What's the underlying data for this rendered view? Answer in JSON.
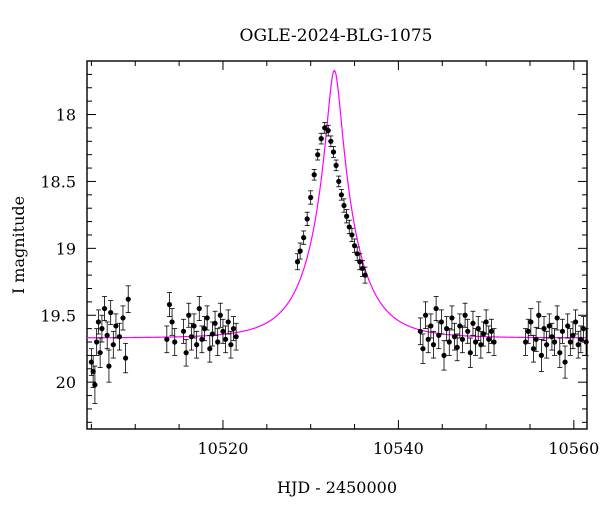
{
  "chart_data": {
    "type": "scatter",
    "title": "OGLE-2024-BLG-1075",
    "xlabel": "HJD - 2450000",
    "ylabel": "I magnitude",
    "xlim": [
      10504.5,
      10561.5
    ],
    "ylim": [
      20.35,
      17.6
    ],
    "y_inverted": true,
    "x_ticks": [
      10520,
      10540,
      10560
    ],
    "x_tick_labels": [
      "10520",
      "10540",
      "10560"
    ],
    "y_ticks": [
      18,
      18.5,
      19,
      19.5,
      20
    ],
    "y_tick_labels": [
      "18",
      "18.5",
      "19",
      "19.5",
      "20"
    ],
    "grid": false,
    "colors": {
      "data": "#000000",
      "model": "#ff00ff"
    },
    "model": {
      "name": "",
      "baseline_mag": 19.67,
      "t0": 10532.7,
      "u0": 0.16,
      "tE": 4.8
    },
    "series": [
      {
        "name": "",
        "x": [
          10505.0,
          10505.2,
          10505.4,
          10505.6,
          10505.8,
          10506.0,
          10506.2,
          10506.5,
          10506.8,
          10507.0,
          10507.2,
          10507.5,
          10507.8,
          10508.2,
          10508.6,
          10508.9,
          10509.2,
          10513.6,
          10513.9,
          10514.2,
          10514.5,
          10515.5,
          10515.8,
          10516.1,
          10516.4,
          10516.7,
          10517.0,
          10517.3,
          10517.6,
          10517.9,
          10518.2,
          10518.5,
          10518.8,
          10519.1,
          10519.4,
          10519.7,
          10520.0,
          10520.3,
          10520.6,
          10520.9,
          10521.2,
          10521.5,
          10528.5,
          10528.8,
          10529.2,
          10529.6,
          10530.0,
          10530.4,
          10530.8,
          10531.2,
          10531.6,
          10532.0,
          10532.3,
          10532.6,
          10532.9,
          10533.2,
          10533.5,
          10533.8,
          10534.1,
          10534.4,
          10534.7,
          10535.0,
          10535.3,
          10535.6,
          10535.9,
          10536.2,
          10542.5,
          10542.8,
          10543.1,
          10543.4,
          10543.7,
          10544.0,
          10544.3,
          10544.6,
          10544.9,
          10545.2,
          10545.5,
          10545.8,
          10546.1,
          10546.4,
          10546.7,
          10547.0,
          10547.3,
          10547.6,
          10547.9,
          10548.2,
          10548.5,
          10548.8,
          10549.1,
          10549.4,
          10549.7,
          10550.0,
          10550.3,
          10550.6,
          10550.9,
          10554.5,
          10554.8,
          10555.1,
          10555.4,
          10555.7,
          10556.0,
          10556.3,
          10556.6,
          10556.9,
          10557.2,
          10557.5,
          10557.8,
          10558.1,
          10558.4,
          10558.7,
          10559.0,
          10559.3,
          10559.6,
          10559.9,
          10560.2,
          10560.5,
          10560.8,
          10561.1,
          10561.4
        ],
        "y": [
          19.85,
          19.92,
          20.02,
          19.7,
          19.55,
          19.78,
          19.6,
          19.45,
          19.65,
          19.88,
          19.48,
          19.72,
          19.58,
          19.66,
          19.52,
          19.82,
          19.38,
          19.68,
          19.42,
          19.55,
          19.7,
          19.62,
          19.78,
          19.5,
          19.66,
          19.58,
          19.72,
          19.45,
          19.68,
          19.6,
          19.52,
          19.75,
          19.64,
          19.56,
          19.7,
          19.5,
          19.62,
          19.68,
          19.55,
          19.72,
          19.6,
          19.66,
          19.1,
          19.02,
          18.92,
          18.78,
          18.62,
          18.45,
          18.3,
          18.18,
          18.1,
          18.12,
          18.2,
          18.28,
          18.38,
          18.5,
          18.6,
          18.68,
          18.76,
          18.84,
          18.9,
          18.98,
          19.04,
          19.1,
          19.15,
          19.2,
          19.62,
          19.75,
          19.5,
          19.68,
          19.58,
          19.72,
          19.45,
          19.65,
          19.55,
          19.8,
          19.6,
          19.7,
          19.52,
          19.66,
          19.74,
          19.58,
          19.68,
          19.5,
          19.62,
          19.78,
          19.56,
          19.7,
          19.6,
          19.72,
          19.64,
          19.55,
          19.68,
          19.62,
          19.7,
          19.7,
          19.62,
          19.55,
          19.75,
          19.68,
          19.5,
          19.8,
          19.6,
          19.72,
          19.58,
          19.66,
          19.7,
          19.52,
          19.78,
          19.62,
          19.85,
          19.58,
          19.7,
          19.65,
          19.55,
          19.72,
          19.68,
          19.6,
          19.7
        ],
        "err": [
          0.1,
          0.12,
          0.14,
          0.1,
          0.09,
          0.11,
          0.1,
          0.09,
          0.1,
          0.12,
          0.09,
          0.1,
          0.09,
          0.1,
          0.09,
          0.11,
          0.1,
          0.1,
          0.09,
          0.1,
          0.1,
          0.09,
          0.1,
          0.09,
          0.1,
          0.09,
          0.1,
          0.09,
          0.1,
          0.09,
          0.09,
          0.1,
          0.09,
          0.09,
          0.1,
          0.09,
          0.09,
          0.1,
          0.09,
          0.1,
          0.09,
          0.1,
          0.06,
          0.06,
          0.05,
          0.05,
          0.05,
          0.04,
          0.04,
          0.04,
          0.04,
          0.04,
          0.04,
          0.04,
          0.04,
          0.04,
          0.04,
          0.05,
          0.05,
          0.05,
          0.05,
          0.05,
          0.05,
          0.06,
          0.06,
          0.06,
          0.1,
          0.11,
          0.1,
          0.1,
          0.09,
          0.1,
          0.09,
          0.1,
          0.09,
          0.11,
          0.09,
          0.1,
          0.09,
          0.1,
          0.1,
          0.09,
          0.1,
          0.09,
          0.09,
          0.11,
          0.09,
          0.1,
          0.09,
          0.1,
          0.09,
          0.09,
          0.1,
          0.09,
          0.1,
          0.1,
          0.09,
          0.1,
          0.1,
          0.09,
          0.1,
          0.12,
          0.09,
          0.1,
          0.09,
          0.1,
          0.1,
          0.09,
          0.11,
          0.09,
          0.12,
          0.09,
          0.1,
          0.1,
          0.09,
          0.1,
          0.1,
          0.09,
          0.1
        ]
      }
    ]
  }
}
